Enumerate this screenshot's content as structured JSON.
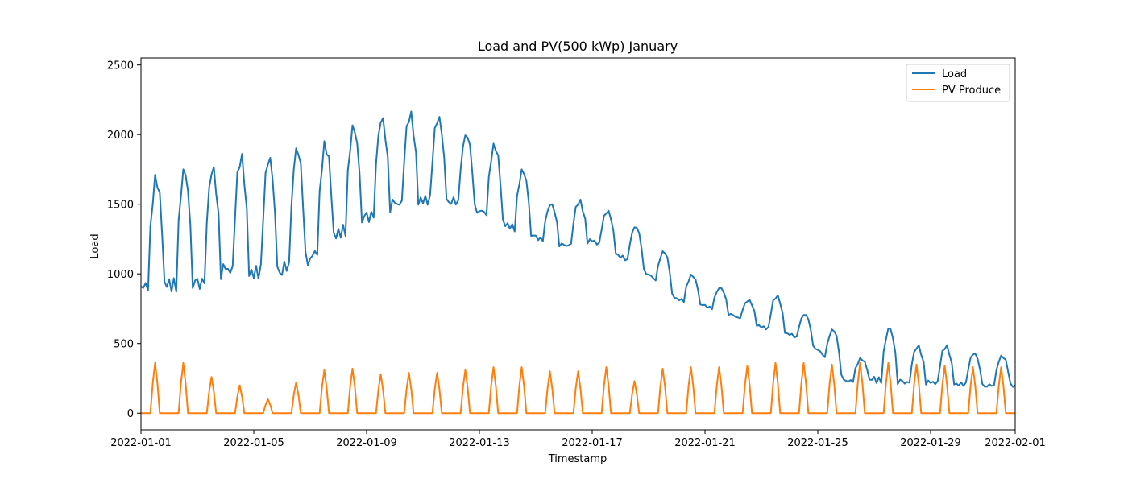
{
  "chart_data": {
    "type": "line",
    "title": "Load and PV(500 kWp) January",
    "xlabel": "Timestamp",
    "ylabel": "Load",
    "xlim": [
      "2022-01-01",
      "2022-02-01"
    ],
    "ylim": [
      -120,
      2550
    ],
    "x_ticks": [
      "2022-01-01",
      "2022-01-05",
      "2022-01-09",
      "2022-01-13",
      "2022-01-17",
      "2022-01-21",
      "2022-01-25",
      "2022-01-29",
      "2022-02-01"
    ],
    "y_ticks": [
      0,
      500,
      1000,
      1500,
      2000,
      2500
    ],
    "grid": false,
    "legend_position": "top-right",
    "colors": {
      "load": "#1f77b4",
      "pv": "#ff7f0e"
    },
    "series": [
      {
        "name": "Load",
        "color": "#1f77b4",
        "daily_min": [
          910,
          920,
          920,
          1030,
          1010,
          1040,
          1120,
          1290,
          1400,
          1500,
          1530,
          1530,
          1460,
          1350,
          1260,
          1200,
          1240,
          1130,
          1000,
          820,
          770,
          700,
          620,
          570,
          460,
          230,
          240,
          220,
          220,
          210,
          200
        ],
        "daily_max": [
          1680,
          1740,
          1750,
          1830,
          1830,
          1900,
          1920,
          2050,
          2110,
          2140,
          2120,
          2000,
          1920,
          1740,
          1500,
          1520,
          1450,
          1340,
          1160,
          990,
          900,
          810,
          840,
          710,
          600,
          390,
          610,
          480,
          480,
          430,
          410
        ]
      },
      {
        "name": "PV Produce",
        "color": "#ff7f0e",
        "daily_peak": [
          360,
          360,
          260,
          200,
          100,
          220,
          310,
          320,
          280,
          290,
          290,
          310,
          330,
          330,
          300,
          300,
          330,
          230,
          320,
          330,
          330,
          340,
          360,
          360,
          350,
          360,
          360,
          350,
          340,
          330,
          330
        ]
      }
    ]
  }
}
